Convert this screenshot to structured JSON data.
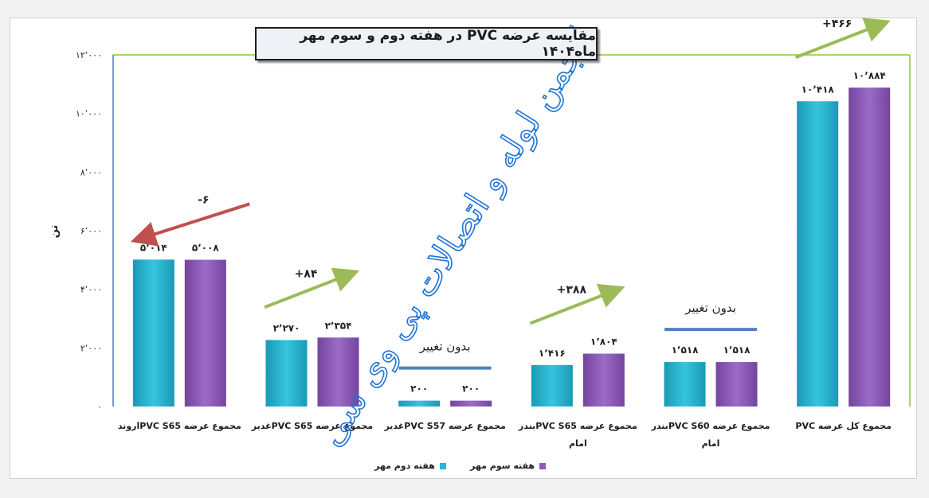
{
  "chart_data": {
    "type": "bar",
    "title": "مقایسه عرضه PVC در هفته دوم و سوم مهر ماه۱۴۰۴",
    "ylabel": "تن",
    "ylim": [
      0,
      12000
    ],
    "yticks": [
      "۰",
      "۲٬۰۰۰",
      "۴٬۰۰۰",
      "۶٬۰۰۰",
      "۸٬۰۰۰",
      "۱۰٬۰۰۰",
      "۱۲٬۰۰۰"
    ],
    "categories": [
      [
        "مجموع عرضه PVC S65اروند"
      ],
      [
        "مجموع عرضه PVC S65غدیر"
      ],
      [
        "مجموع عرضه PVC S57غدیر"
      ],
      [
        "مجموع عرضه PVC S65بندر",
        "امام"
      ],
      [
        "مجموع عرضه PVC S60بندر",
        "امام"
      ],
      [
        "مجموع کل عرضه PVC"
      ]
    ],
    "series": [
      {
        "name": "هفته دوم مهر",
        "color": "#2bb5cf",
        "values": [
          5014,
          2270,
          200,
          1416,
          1518,
          10418
        ],
        "labels": [
          "۵٬۰۱۴",
          "۲٬۲۷۰",
          "۲۰۰",
          "۱٬۴۱۶",
          "۱٬۵۱۸",
          "۱۰٬۴۱۸"
        ]
      },
      {
        "name": "هفته سوم مهر",
        "color": "#8d5bb8",
        "values": [
          5008,
          2354,
          200,
          1804,
          1518,
          10884
        ],
        "labels": [
          "۵٬۰۰۸",
          "۲٬۳۵۴",
          "۲۰۰",
          "۱٬۸۰۴",
          "۱٬۵۱۸",
          "۱۰٬۸۸۴"
        ]
      }
    ],
    "annotations": [
      {
        "category": 0,
        "text": "-۶",
        "kind": "down",
        "color": "#c0504d"
      },
      {
        "category": 1,
        "text": "+۸۴",
        "kind": "up",
        "color": "#9bbb59"
      },
      {
        "category": 2,
        "text": "بدون تغییر",
        "kind": "flat",
        "color": "#4f81bd"
      },
      {
        "category": 3,
        "text": "+۳۸۸",
        "kind": "up",
        "color": "#9bbb59"
      },
      {
        "category": 4,
        "text": "بدون تغییر",
        "kind": "flat",
        "color": "#4f81bd"
      },
      {
        "category": 5,
        "text": "+۴۶۶",
        "kind": "up",
        "color": "#9bbb59"
      }
    ],
    "watermark": "انجمن لوله و اتصالات پی وی سی",
    "legend_position": "bottom",
    "grid": false
  },
  "colors": {
    "series1": "#2bb5cf",
    "series2": "#8d5bb8",
    "plot_border": "#8cc63e",
    "watermark": "#1e73d4"
  }
}
